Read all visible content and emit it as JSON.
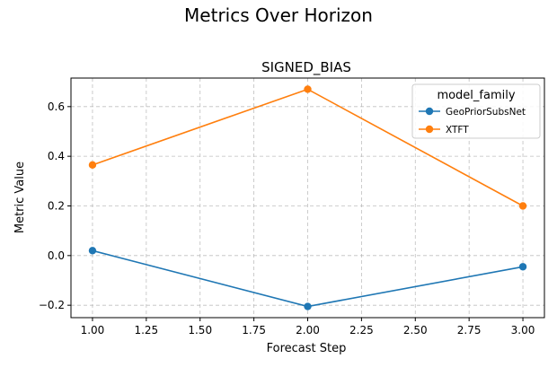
{
  "figure": {
    "suptitle": "Metrics Over Horizon"
  },
  "chart_data": {
    "type": "line",
    "title": "SIGNED_BIAS",
    "xlabel": "Forecast Step",
    "ylabel": "Metric Value",
    "xlim": [
      0.9,
      3.1
    ],
    "ylim": [
      -0.25,
      0.715
    ],
    "xticks": [
      1.0,
      1.25,
      1.5,
      1.75,
      2.0,
      2.25,
      2.5,
      2.75,
      3.0
    ],
    "xtick_labels": [
      "1.00",
      "1.25",
      "1.50",
      "1.75",
      "2.00",
      "2.25",
      "2.50",
      "2.75",
      "3.00"
    ],
    "yticks": [
      -0.2,
      0.0,
      0.2,
      0.4,
      0.6
    ],
    "ytick_labels": [
      "−0.2",
      "0.0",
      "0.2",
      "0.4",
      "0.6"
    ],
    "grid": true,
    "legend": {
      "title": "model_family",
      "placement": "upper-right"
    },
    "x": [
      1.0,
      2.0,
      3.0
    ],
    "series": [
      {
        "name": "GeoPriorSubsNet",
        "color": "#1f77b4",
        "values": [
          0.02,
          -0.205,
          -0.045
        ]
      },
      {
        "name": "XTFT",
        "color": "#ff7f0e",
        "values": [
          0.365,
          0.67,
          0.2
        ]
      }
    ]
  }
}
